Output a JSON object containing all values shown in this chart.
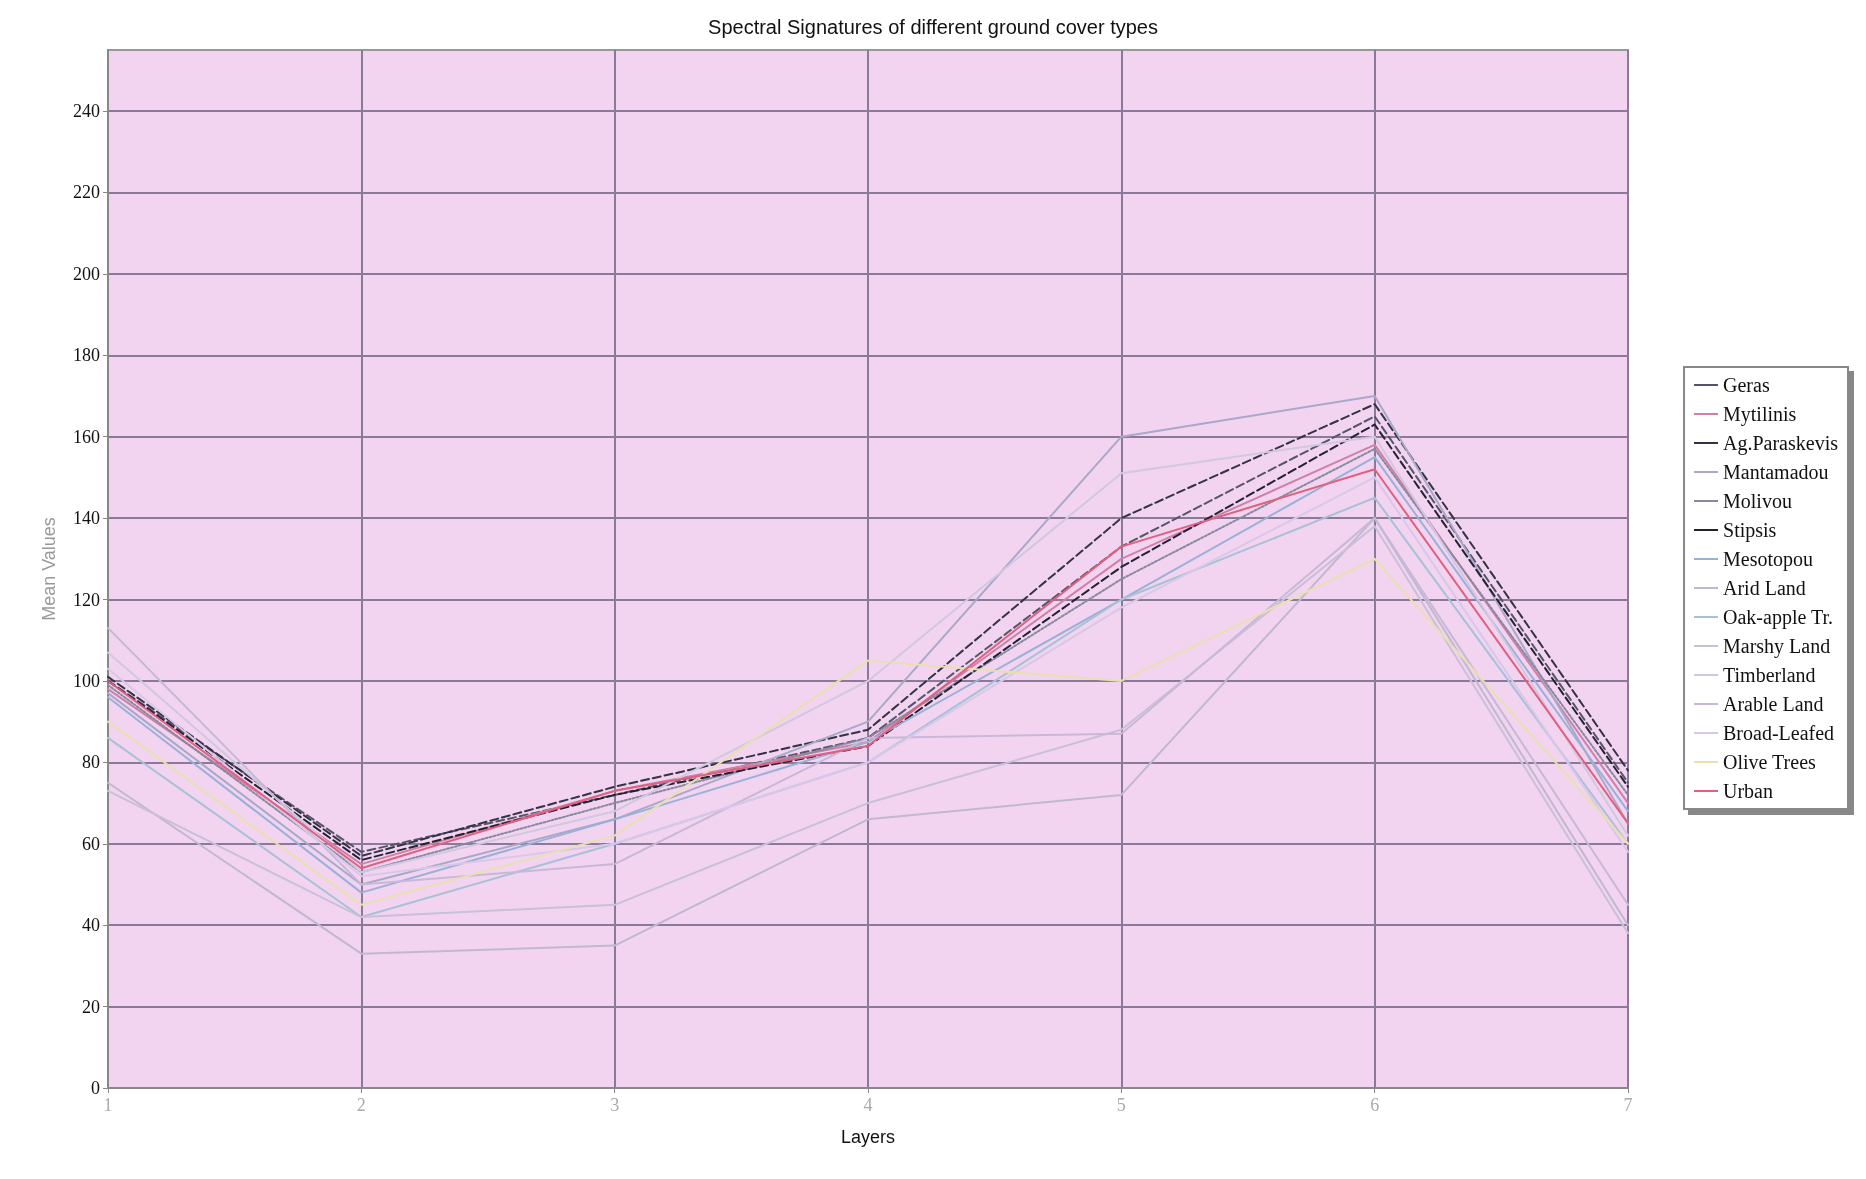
{
  "chart_data": {
    "type": "line",
    "title": "Spectral Signatures of different ground cover types",
    "xlabel": "Layers",
    "ylabel": "Mean Values",
    "x": [
      1,
      2,
      3,
      4,
      5,
      6,
      7
    ],
    "xlim": [
      1,
      7
    ],
    "xticks": [
      1,
      2,
      3,
      4,
      5,
      6,
      7
    ],
    "ylim": [
      0,
      255
    ],
    "yticks": [
      0,
      20,
      40,
      60,
      80,
      100,
      120,
      140,
      160,
      180,
      200,
      220,
      240
    ],
    "grid": true,
    "legend": "right",
    "marker": "none",
    "series": [
      {
        "name": "Geras",
        "color": "#55556a",
        "line_style": "dashed",
        "values": [
          100,
          58,
          72,
          86,
          133,
          165,
          75
        ]
      },
      {
        "name": "Mytilinis",
        "color": "#d080a8",
        "values": [
          98,
          55,
          73,
          85,
          130,
          158,
          70
        ]
      },
      {
        "name": "Ag.Paraskevis",
        "color": "#333344",
        "line_style": "dashed",
        "values": [
          101,
          57,
          74,
          88,
          140,
          168,
          78
        ]
      },
      {
        "name": "Mantamadou",
        "color": "#a8a8c8",
        "values": [
          97,
          50,
          66,
          90,
          160,
          170,
          65
        ]
      },
      {
        "name": "Molivou",
        "color": "#8888a0",
        "line_style": "dotted",
        "values": [
          99,
          53,
          70,
          86,
          125,
          157,
          72
        ]
      },
      {
        "name": "Stipsis",
        "color": "#222233",
        "line_style": "dashed",
        "values": [
          100,
          56,
          72,
          84,
          128,
          163,
          74
        ]
      },
      {
        "name": "Mesotopou",
        "color": "#9ab0d8",
        "values": [
          96,
          48,
          66,
          85,
          120,
          155,
          68
        ]
      },
      {
        "name": "Arid Land",
        "color": "#c0b8d0",
        "values": [
          75,
          33,
          35,
          66,
          72,
          140,
          40
        ]
      },
      {
        "name": "Oak-apple Tr.",
        "color": "#a8c0d8",
        "values": [
          86,
          42,
          60,
          80,
          120,
          145,
          60
        ]
      },
      {
        "name": "Marshy Land",
        "color": "#c8c0d8",
        "values": [
          73,
          42,
          45,
          70,
          88,
          138,
          38
        ]
      },
      {
        "name": "Timberland",
        "color": "#d0c8e0",
        "values": [
          107,
          53,
          68,
          100,
          151,
          160,
          62
        ]
      },
      {
        "name": "Arable Land",
        "color": "#c8b8d8",
        "values": [
          113,
          50,
          55,
          86,
          87,
          140,
          45
        ]
      },
      {
        "name": "Broad-Leafed",
        "color": "#d8c8e8",
        "values": [
          103,
          52,
          60,
          80,
          118,
          150,
          58
        ]
      },
      {
        "name": "Olive Trees",
        "color": "#e8e0b0",
        "values": [
          90,
          45,
          62,
          105,
          100,
          130,
          60
        ]
      },
      {
        "name": "Urban",
        "color": "#e06080",
        "values": [
          100,
          54,
          73,
          84,
          133,
          152,
          65
        ]
      }
    ]
  }
}
